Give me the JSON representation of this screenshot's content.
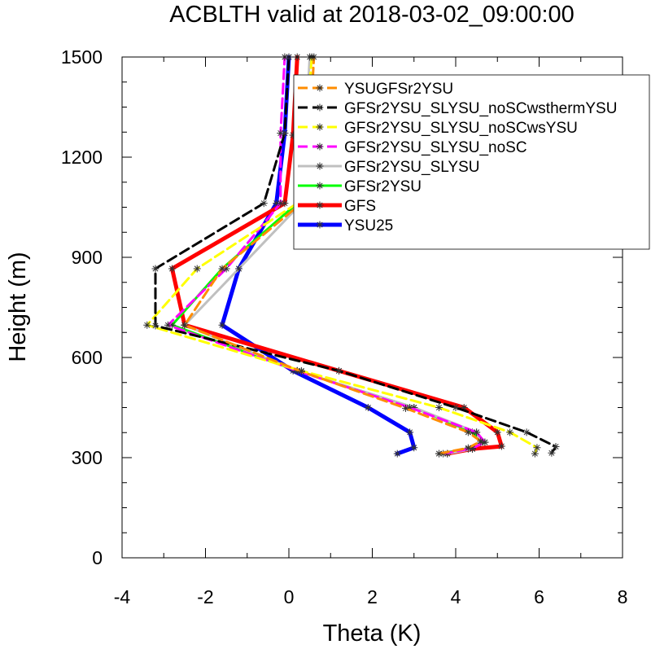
{
  "chart_data": {
    "type": "line",
    "title": "ACBLTH valid at 2018-03-02_09:00:00",
    "xlabel": "Theta (K)",
    "ylabel": "Height (m)",
    "xlim": [
      -4,
      8
    ],
    "ylim": [
      0,
      1500
    ],
    "xticks": [
      "-4",
      "-2",
      "0",
      "2",
      "4",
      "6",
      "8"
    ],
    "yticks": [
      "0",
      "300",
      "600",
      "900",
      "1200",
      "1500"
    ],
    "xtick_values": [
      -4,
      -2,
      0,
      2,
      4,
      6,
      8
    ],
    "ytick_values": [
      0,
      300,
      600,
      900,
      1200,
      1500
    ],
    "grid": false,
    "legend_position": "top-right",
    "marker": "asterisk",
    "series": [
      {
        "name": "YSUGFSr2YSU",
        "color": "#ff8c00",
        "dash": "dash",
        "points": [
          [
            3.6,
            312
          ],
          [
            4.3,
            329
          ],
          [
            4.6,
            349
          ],
          [
            4.3,
            376
          ],
          [
            2.8,
            448
          ],
          [
            0.3,
            558
          ],
          [
            -2.5,
            697
          ],
          [
            -1.6,
            866
          ],
          [
            0.3,
            1062
          ],
          [
            0.5,
            1266
          ],
          [
            0.6,
            1500
          ]
        ]
      },
      {
        "name": "GFSr2YSU_SLYSU_noSCwsthermYSU",
        "color": "#000000",
        "dash": "dash",
        "points": [
          [
            6.3,
            314
          ],
          [
            6.4,
            333
          ],
          [
            5.7,
            376
          ],
          [
            4.0,
            450
          ],
          [
            1.2,
            560
          ],
          [
            -3.2,
            695
          ],
          [
            -3.2,
            866
          ],
          [
            -0.6,
            1062
          ],
          [
            -0.1,
            1272
          ],
          [
            0.0,
            1500
          ]
        ]
      },
      {
        "name": "GFSr2YSU_SLYSU_noSCwsYSU",
        "color": "#ffff00",
        "dash": "dash",
        "points": [
          [
            5.9,
            312
          ],
          [
            5.95,
            330
          ],
          [
            5.3,
            376
          ],
          [
            3.6,
            450
          ],
          [
            0.3,
            560
          ],
          [
            -3.4,
            697
          ],
          [
            -2.2,
            866
          ],
          [
            0.2,
            1062
          ],
          [
            0.4,
            1266
          ],
          [
            0.55,
            1500
          ]
        ]
      },
      {
        "name": "GFSr2YSU_SLYSU_noSC",
        "color": "#ff00ff",
        "dash": "dash",
        "points": [
          [
            3.7,
            312
          ],
          [
            4.4,
            328
          ],
          [
            4.7,
            346
          ],
          [
            4.5,
            376
          ],
          [
            2.9,
            450
          ],
          [
            0.2,
            560
          ],
          [
            -2.9,
            697
          ],
          [
            -1.5,
            866
          ],
          [
            -0.2,
            1062
          ],
          [
            -0.2,
            1272
          ],
          [
            -0.1,
            1500
          ]
        ]
      },
      {
        "name": "GFSr2YSU_SLYSU",
        "color": "#c0c0c0",
        "dash": "solid",
        "points": [
          [
            3.8,
            312
          ],
          [
            4.4,
            326
          ],
          [
            4.6,
            344
          ],
          [
            4.5,
            376
          ],
          [
            3.0,
            450
          ],
          [
            0.2,
            560
          ],
          [
            -2.5,
            697
          ],
          [
            -1.2,
            866
          ],
          [
            0.3,
            1062
          ],
          [
            0.4,
            1266
          ],
          [
            0.5,
            1500
          ]
        ]
      },
      {
        "name": "GFSr2YSU",
        "color": "#00ff00",
        "dash": "solid",
        "points": [
          [
            3.6,
            312
          ],
          [
            4.3,
            326
          ],
          [
            4.7,
            346
          ],
          [
            4.4,
            376
          ],
          [
            3.0,
            450
          ],
          [
            0.2,
            560
          ],
          [
            -2.8,
            697
          ],
          [
            -1.6,
            866
          ],
          [
            0.2,
            1062
          ]
        ]
      },
      {
        "name": "GFS",
        "color": "#ff0000",
        "dash": "solid",
        "points": [
          [
            3.8,
            312
          ],
          [
            4.4,
            326
          ],
          [
            5.1,
            334
          ],
          [
            5.0,
            376
          ],
          [
            4.2,
            450
          ],
          [
            1.2,
            560
          ],
          [
            -2.5,
            697
          ],
          [
            -2.8,
            866
          ],
          [
            -0.1,
            1062
          ],
          [
            0.1,
            1266
          ],
          [
            0.2,
            1500
          ]
        ]
      },
      {
        "name": "YSU25",
        "color": "#0000ff",
        "dash": "solid",
        "points": [
          [
            2.6,
            312
          ],
          [
            3.0,
            330
          ],
          [
            2.9,
            376
          ],
          [
            1.9,
            450
          ],
          [
            0.1,
            560
          ],
          [
            -1.6,
            697
          ],
          [
            -1.2,
            866
          ],
          [
            -0.3,
            1062
          ],
          [
            -0.1,
            1272
          ],
          [
            0.0,
            1500
          ]
        ]
      }
    ]
  }
}
